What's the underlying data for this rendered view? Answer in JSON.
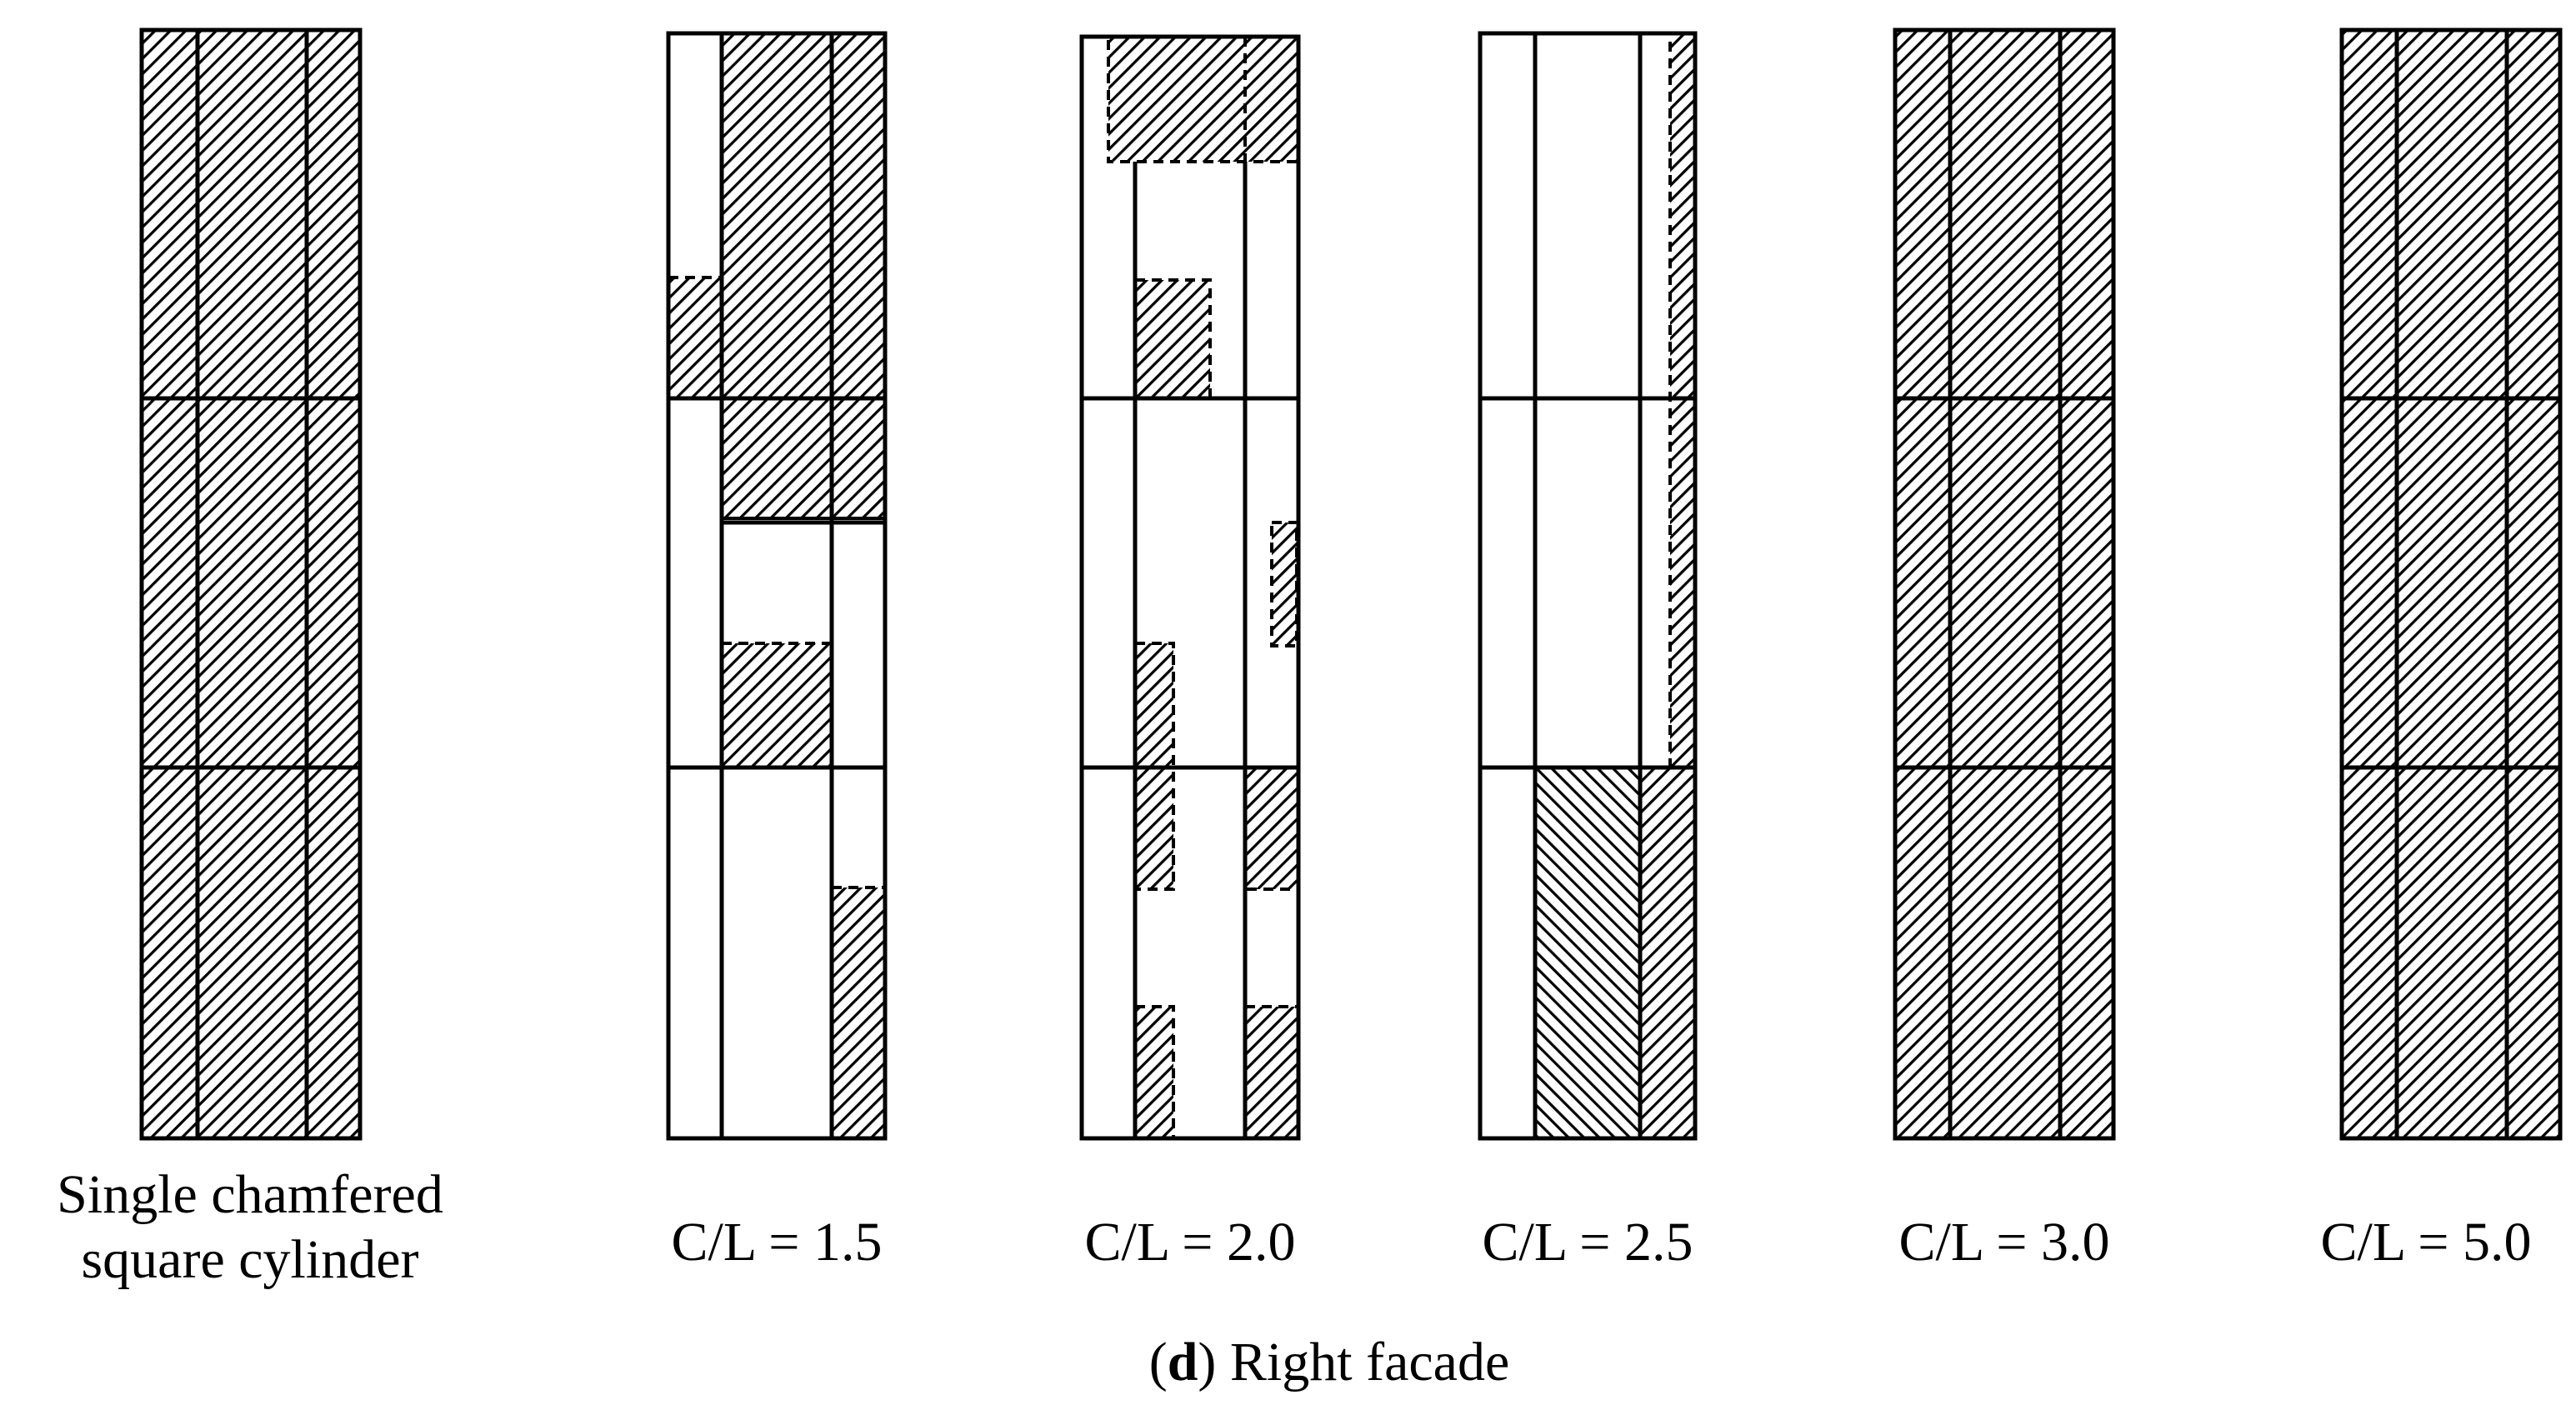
{
  "colors": {
    "stroke": "#000000",
    "hatch": "#000000",
    "background": "#ffffff"
  },
  "panels": [
    {
      "label_line1": "Single chamfered",
      "label_line2": "square cylinder"
    },
    {
      "label_line1": "C/L = 1.5"
    },
    {
      "label_line1": "C/L = 2.0"
    },
    {
      "label_line1": "C/L = 2.5"
    },
    {
      "label_line1": "C/L = 3.0"
    },
    {
      "label_line1": "C/L = 5.0"
    }
  ],
  "caption": {
    "open": "(",
    "letter": "d",
    "close": ")",
    "text": " Right facade"
  }
}
